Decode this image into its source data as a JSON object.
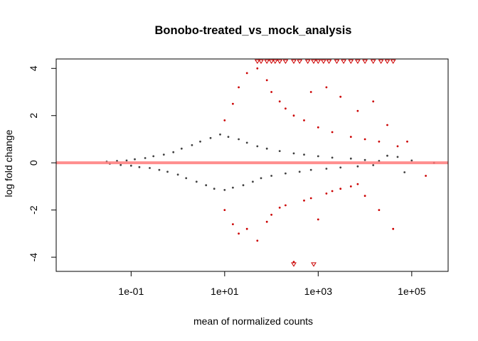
{
  "chart_data": {
    "type": "scatter",
    "title": "Bonobo-treated_vs_mock_analysis",
    "xlabel": "mean of normalized counts",
    "ylabel": "log fold change",
    "x_scale": "log10",
    "xlim": [
      0.0025,
      600000
    ],
    "ylim": [
      -4.6,
      4.4
    ],
    "x_ticks": [
      {
        "value": 0.1,
        "label": "1e-01"
      },
      {
        "value": 10,
        "label": "1e+01"
      },
      {
        "value": 1000,
        "label": "1e+03"
      },
      {
        "value": 100000,
        "label": "1e+05"
      }
    ],
    "y_ticks": [
      {
        "value": -4,
        "label": "-4"
      },
      {
        "value": -2,
        "label": "-2"
      },
      {
        "value": 0,
        "label": "0"
      },
      {
        "value": 2,
        "label": "2"
      },
      {
        "value": 4,
        "label": "4"
      }
    ],
    "grid": false,
    "reference_line": {
      "y": 0,
      "color": "#ff7a7a"
    },
    "colors": {
      "not_significant": "#404040",
      "significant": "#cc0000"
    },
    "series": [
      {
        "color": "#404040",
        "points": [
          [
            0.03,
            0.05
          ],
          [
            0.035,
            -0.04
          ],
          [
            0.05,
            0.08
          ],
          [
            0.06,
            -0.09
          ],
          [
            0.08,
            0.1
          ],
          [
            0.1,
            -0.12
          ],
          [
            0.12,
            0.15
          ],
          [
            0.15,
            -0.18
          ],
          [
            0.2,
            0.2
          ],
          [
            0.25,
            -0.22
          ],
          [
            0.3,
            0.28
          ],
          [
            0.4,
            -0.3
          ],
          [
            0.5,
            0.35
          ],
          [
            0.6,
            -0.38
          ],
          [
            0.8,
            0.45
          ],
          [
            1,
            -0.5
          ],
          [
            1.2,
            0.6
          ],
          [
            1.5,
            -0.65
          ],
          [
            2,
            0.75
          ],
          [
            2.5,
            -0.8
          ],
          [
            3,
            0.9
          ],
          [
            4,
            -0.95
          ],
          [
            5,
            1.05
          ],
          [
            6,
            -1.1
          ],
          [
            8,
            1.2
          ],
          [
            10,
            -1.15
          ],
          [
            12,
            1.1
          ],
          [
            15,
            -1.05
          ],
          [
            20,
            1.0
          ],
          [
            25,
            -0.95
          ],
          [
            30,
            0.85
          ],
          [
            40,
            -0.8
          ],
          [
            50,
            0.7
          ],
          [
            60,
            -0.65
          ],
          [
            80,
            0.6
          ],
          [
            100,
            -0.55
          ],
          [
            150,
            0.5
          ],
          [
            200,
            -0.45
          ],
          [
            300,
            0.4
          ],
          [
            400,
            -0.38
          ],
          [
            500,
            0.35
          ],
          [
            700,
            -0.3
          ],
          [
            1000,
            0.28
          ],
          [
            1500,
            -0.25
          ],
          [
            2000,
            0.22
          ],
          [
            3000,
            -0.2
          ],
          [
            5000,
            0.18
          ],
          [
            7000,
            -0.15
          ],
          [
            10000,
            0.12
          ],
          [
            15000,
            -0.1
          ],
          [
            20000,
            0.08
          ],
          [
            30000,
            0.3
          ],
          [
            50000,
            0.25
          ],
          [
            70000,
            -0.4
          ],
          [
            100000,
            0.1
          ],
          [
            300000,
            0.0
          ]
        ]
      },
      {
        "color": "#cc0000",
        "points": [
          [
            10,
            1.8
          ],
          [
            10,
            -2.0
          ],
          [
            15,
            2.5
          ],
          [
            15,
            -2.6
          ],
          [
            20,
            3.2
          ],
          [
            20,
            -3.0
          ],
          [
            30,
            3.8
          ],
          [
            30,
            -2.8
          ],
          [
            50,
            4.0
          ],
          [
            50,
            -3.3
          ],
          [
            80,
            3.5
          ],
          [
            80,
            -2.5
          ],
          [
            100,
            3.0
          ],
          [
            100,
            -2.2
          ],
          [
            150,
            2.6
          ],
          [
            150,
            -1.9
          ],
          [
            200,
            2.3
          ],
          [
            200,
            -1.8
          ],
          [
            300,
            2.0
          ],
          [
            300,
            -4.2
          ],
          [
            500,
            1.8
          ],
          [
            500,
            -1.6
          ],
          [
            700,
            3.0
          ],
          [
            700,
            -1.5
          ],
          [
            1000,
            1.5
          ],
          [
            1000,
            -2.4
          ],
          [
            1500,
            3.2
          ],
          [
            1500,
            -1.3
          ],
          [
            2000,
            1.3
          ],
          [
            2000,
            -1.2
          ],
          [
            3000,
            2.8
          ],
          [
            3000,
            -1.1
          ],
          [
            5000,
            1.1
          ],
          [
            5000,
            -1.0
          ],
          [
            7000,
            2.2
          ],
          [
            7000,
            -0.9
          ],
          [
            10000,
            1.0
          ],
          [
            10000,
            -1.4
          ],
          [
            15000,
            2.6
          ],
          [
            20000,
            0.9
          ],
          [
            20000,
            -2.0
          ],
          [
            30000,
            1.6
          ],
          [
            40000,
            -2.8
          ],
          [
            50000,
            0.7
          ],
          [
            80000,
            0.9
          ],
          [
            200000,
            -0.55
          ]
        ]
      }
    ],
    "clipped_markers": {
      "marker": "open-triangle-down",
      "top_y": 4.3,
      "top_x": [
        50,
        60,
        80,
        100,
        120,
        150,
        200,
        300,
        400,
        600,
        800,
        1000,
        1300,
        1700,
        2500,
        3500,
        5000,
        7000,
        10000,
        15000,
        22000,
        30000,
        40000
      ],
      "bottom_y": -4.3,
      "bottom_x": [
        300,
        800
      ]
    }
  }
}
